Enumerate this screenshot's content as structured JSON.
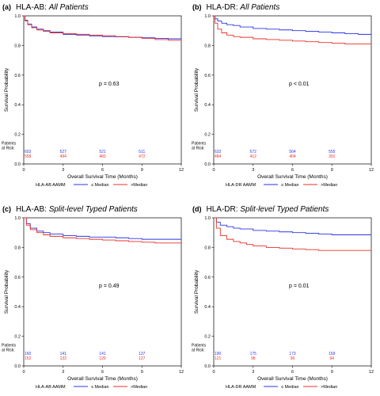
{
  "chart_data": [
    {
      "type": "line",
      "letter": "(a)",
      "title_prefix": "HLA-AB: ",
      "title_italic": "All Patients",
      "xlabel": "Overall Survival Time (Months)",
      "ylabel": "Survival Probability",
      "xlim": [
        0,
        12
      ],
      "ylim": [
        0,
        1.0
      ],
      "xticks": [
        "0",
        "3",
        "6",
        "9",
        "12"
      ],
      "yticks": [
        "0.0",
        "0.2",
        "0.4",
        "0.6",
        "0.8",
        "1.0"
      ],
      "p_value": "p = 0.63",
      "risk_label": [
        "Patients",
        "at Risk:"
      ],
      "legend_title": "HLA-AB AAMM",
      "legend_placement": "bottom",
      "series": [
        {
          "name": "≤ Median",
          "color": "#2b35e8",
          "risk": [
            "603",
            "527",
            "521",
            "511"
          ],
          "x": [
            0,
            0.1,
            0.3,
            0.6,
            1,
            1.5,
            2,
            3,
            4,
            5,
            6,
            7,
            8,
            9,
            10,
            11,
            12
          ],
          "y": [
            1.0,
            0.97,
            0.945,
            0.925,
            0.91,
            0.9,
            0.89,
            0.875,
            0.87,
            0.865,
            0.86,
            0.858,
            0.855,
            0.852,
            0.848,
            0.845,
            0.84
          ]
        },
        {
          "name": ">Median",
          "color": "#e8322b",
          "risk": [
            "558",
            "494",
            "483",
            "472"
          ],
          "x": [
            0,
            0.1,
            0.3,
            0.6,
            1,
            1.5,
            2,
            3,
            4,
            5,
            6,
            7,
            8,
            9,
            10,
            11,
            12
          ],
          "y": [
            1.0,
            0.965,
            0.94,
            0.92,
            0.905,
            0.895,
            0.885,
            0.88,
            0.875,
            0.87,
            0.865,
            0.86,
            0.855,
            0.848,
            0.84,
            0.835,
            0.83
          ]
        }
      ]
    },
    {
      "type": "line",
      "letter": "(b)",
      "title_prefix": "HLA-DR: ",
      "title_italic": "All Patients",
      "xlabel": "Overall Survival Time (Months)",
      "ylabel": "Survival Probability",
      "xlim": [
        0,
        12
      ],
      "ylim": [
        0,
        1.0
      ],
      "xticks": [
        "0",
        "3",
        "6",
        "9",
        "12"
      ],
      "yticks": [
        "0.0",
        "0.2",
        "0.4",
        "0.6",
        "0.8",
        "1.0"
      ],
      "p_value": "p < 0.01",
      "risk_label": [
        "Patients",
        "at Risk:"
      ],
      "legend_title": "HLA-DR AAMM",
      "legend_placement": "bottom",
      "series": [
        {
          "name": "≤ Median",
          "color": "#2b35e8",
          "risk": [
            "632",
            "572",
            "564",
            "555"
          ],
          "x": [
            0,
            0.1,
            0.3,
            0.6,
            1,
            1.5,
            2,
            3,
            4,
            5,
            6,
            7,
            8,
            9,
            10,
            11,
            12
          ],
          "y": [
            1.0,
            0.98,
            0.965,
            0.95,
            0.94,
            0.935,
            0.925,
            0.915,
            0.91,
            0.905,
            0.9,
            0.895,
            0.89,
            0.885,
            0.88,
            0.875,
            0.87
          ]
        },
        {
          "name": ">Median",
          "color": "#e8322b",
          "risk": [
            "484",
            "412",
            "404",
            "391"
          ],
          "x": [
            0,
            0.1,
            0.3,
            0.6,
            1,
            1.5,
            2,
            3,
            4,
            5,
            6,
            7,
            8,
            9,
            10,
            11,
            12
          ],
          "y": [
            1.0,
            0.95,
            0.91,
            0.885,
            0.87,
            0.86,
            0.855,
            0.845,
            0.84,
            0.835,
            0.83,
            0.825,
            0.82,
            0.815,
            0.81,
            0.81,
            0.81
          ]
        }
      ]
    },
    {
      "type": "line",
      "letter": "(c)",
      "title_prefix": "HLA-AB: ",
      "title_italic": "Split-level Typed Patients",
      "xlabel": "Overall Survival Time (Months)",
      "ylabel": "Survival Probability",
      "xlim": [
        0,
        12
      ],
      "ylim": [
        0,
        1.0
      ],
      "xticks": [
        "0",
        "3",
        "6",
        "9",
        "12"
      ],
      "yticks": [
        "0.0",
        "0.2",
        "0.4",
        "0.6",
        "0.8",
        "1.0"
      ],
      "p_value": "p = 0.49",
      "risk_label": [
        "Patients",
        "at Risk:"
      ],
      "legend_title": "HLA-AB AAMM",
      "legend_placement": "bottom",
      "series": [
        {
          "name": "≤ Median",
          "color": "#2b35e8",
          "risk": [
            "160",
            "141",
            "141",
            "137"
          ],
          "x": [
            0,
            0.2,
            0.5,
            1,
            1.5,
            2,
            3,
            4,
            5,
            6,
            7,
            8,
            9,
            10,
            11,
            12
          ],
          "y": [
            1.0,
            0.96,
            0.93,
            0.91,
            0.9,
            0.89,
            0.88,
            0.875,
            0.87,
            0.87,
            0.865,
            0.86,
            0.855,
            0.855,
            0.855,
            0.855
          ]
        },
        {
          "name": ">Median",
          "color": "#e8322b",
          "risk": [
            "152",
            "133",
            "129",
            "127"
          ],
          "x": [
            0,
            0.2,
            0.5,
            1,
            1.5,
            2,
            3,
            4,
            5,
            6,
            7,
            8,
            9,
            10,
            11,
            12
          ],
          "y": [
            1.0,
            0.95,
            0.92,
            0.9,
            0.885,
            0.875,
            0.865,
            0.86,
            0.855,
            0.85,
            0.845,
            0.84,
            0.835,
            0.83,
            0.83,
            0.83
          ]
        }
      ]
    },
    {
      "type": "line",
      "letter": "(d)",
      "title_prefix": "HLA-DR: ",
      "title_italic": "Split-level Typed Patients",
      "xlabel": "Overall Survival Time (Months)",
      "ylabel": "Survival Probability",
      "xlim": [
        0,
        12
      ],
      "ylim": [
        0,
        1.0
      ],
      "xticks": [
        "0",
        "3",
        "6",
        "9",
        "12"
      ],
      "yticks": [
        "0.0",
        "0.2",
        "0.4",
        "0.6",
        "0.8",
        "1.0"
      ],
      "p_value": "p = 0.01",
      "risk_label": [
        "Patients",
        "at Risk:"
      ],
      "legend_title": "HLA-DR AAMM",
      "legend_placement": "bottom",
      "series": [
        {
          "name": "≤ Median",
          "color": "#2b35e8",
          "risk": [
            "190",
            "175",
            "173",
            "169"
          ],
          "x": [
            0,
            0.2,
            0.5,
            1,
            1.5,
            2,
            3,
            4,
            5,
            6,
            7,
            8,
            9,
            10,
            11,
            12
          ],
          "y": [
            1.0,
            0.97,
            0.95,
            0.94,
            0.93,
            0.925,
            0.915,
            0.91,
            0.905,
            0.9,
            0.895,
            0.89,
            0.885,
            0.885,
            0.885,
            0.885
          ]
        },
        {
          "name": ">Median",
          "color": "#e8322b",
          "risk": [
            "121",
            "98",
            "96",
            "94"
          ],
          "x": [
            0,
            0.2,
            0.5,
            1,
            1.5,
            2,
            2.5,
            3,
            4,
            5,
            6,
            7,
            8,
            9,
            10,
            11,
            12
          ],
          "y": [
            1.0,
            0.93,
            0.88,
            0.855,
            0.84,
            0.83,
            0.82,
            0.81,
            0.8,
            0.795,
            0.79,
            0.785,
            0.78,
            0.78,
            0.78,
            0.78,
            0.78
          ]
        }
      ]
    }
  ]
}
